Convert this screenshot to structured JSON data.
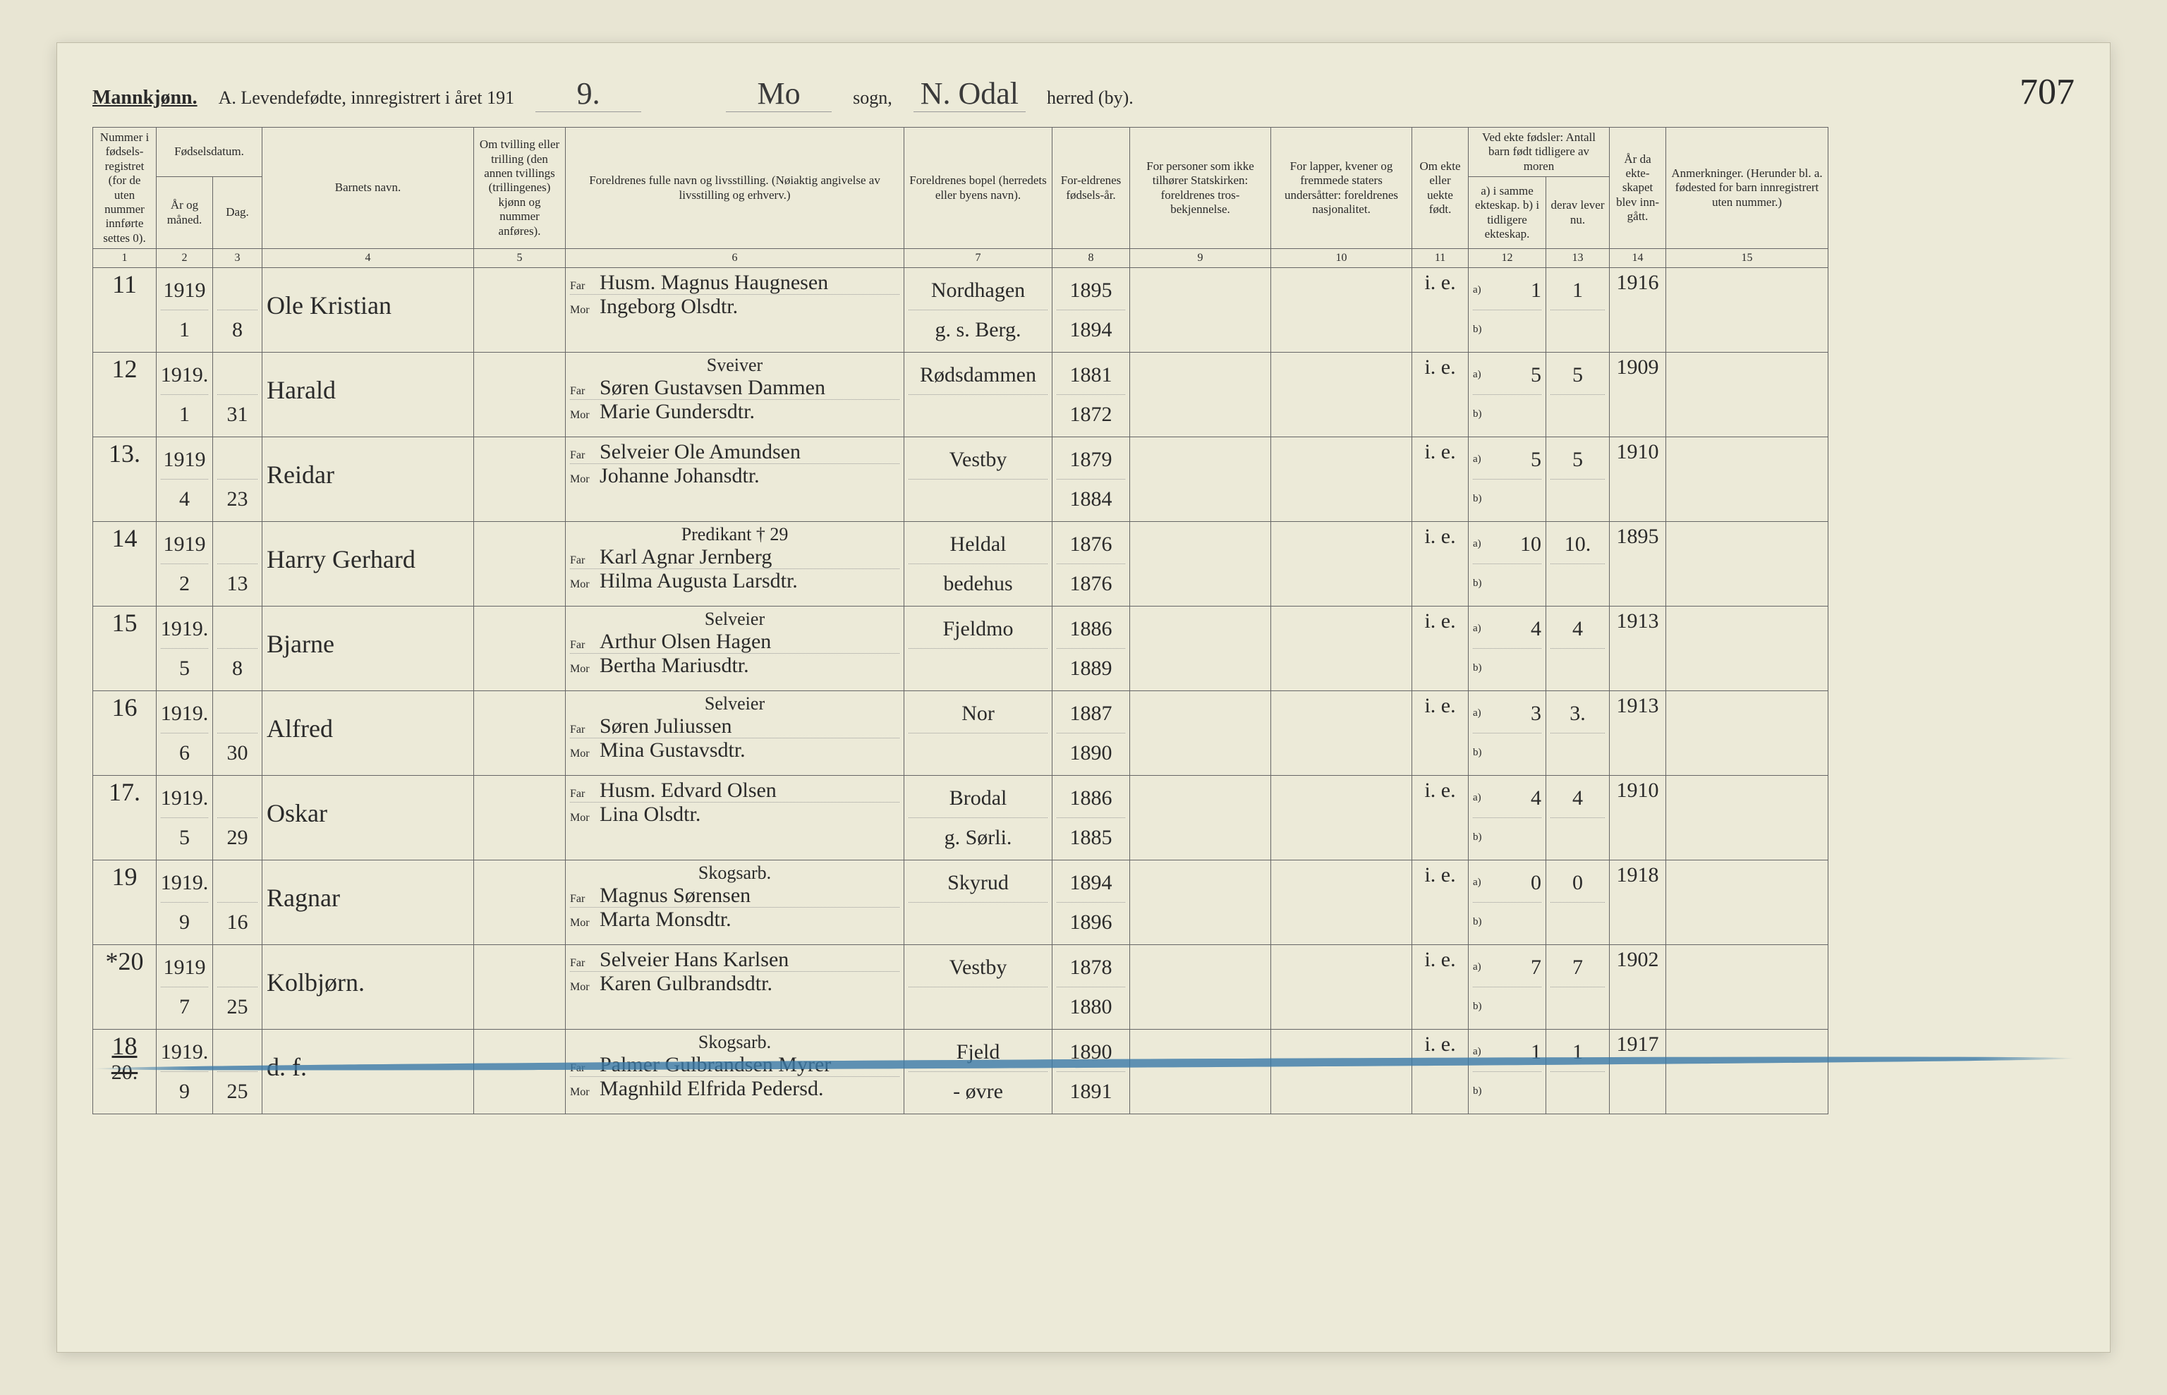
{
  "header": {
    "gender_label": "Mannkjønn.",
    "title_prefix": "A.  Levendefødte, innregistrert i året 191",
    "year_suffix": "9.",
    "sogn_value": "Mo",
    "sogn_label": "sogn,",
    "herred_value": "N. Odal",
    "herred_label": "herred (by).",
    "page_number": "707"
  },
  "columns": {
    "c1": "Nummer i fødsels-registret (for de uten nummer innførte settes 0).",
    "c2_top": "Fødselsdatum.",
    "c2": "År og måned.",
    "c3": "Dag.",
    "c4": "Barnets navn.",
    "c5": "Om tvilling eller trilling (den annen tvillings (trillingenes) kjønn og nummer anføres).",
    "c6": "Foreldrenes fulle navn og livsstilling. (Nøiaktig angivelse av livsstilling og erhverv.)",
    "c7": "Foreldrenes bopel (herredets eller byens navn).",
    "c8": "For-eldrenes fødsels-år.",
    "c9": "For personer som ikke tilhører Statskirken: foreldrenes tros-bekjennelse.",
    "c10": "For lapper, kvener og fremmede staters undersåtter: foreldrenes nasjonalitet.",
    "c11": "Om ekte eller uekte født.",
    "c12_top": "Ved ekte fødsler: Antall barn født tidligere av moren",
    "c12": "a) i samme ekteskap. b) i tidligere ekteskap.",
    "c13": "derav lever nu.",
    "c14": "År da ekte-skapet blev inn-gått.",
    "c15": "Anmerkninger. (Herunder bl. a. fødested for barn innregistrert uten nummer.)",
    "far": "Far",
    "mor": "Mor"
  },
  "colnums": [
    "1",
    "2",
    "3",
    "4",
    "5",
    "6",
    "7",
    "8",
    "9",
    "10",
    "11",
    "12",
    "13",
    "14",
    "15"
  ],
  "rows": [
    {
      "num": "11",
      "year": "1919",
      "month": "1",
      "day": "8",
      "name": "Ole Kristian",
      "far": "Husm. Magnus Haugnesen",
      "mor": "Ingeborg Olsdtr.",
      "bopel_top": "Nordhagen",
      "bopel_bot": "g. s. Berg.",
      "faar": "1895",
      "maar": "1894",
      "ekte": "i. e.",
      "a12": "1",
      "a13": "1",
      "yr": "1916"
    },
    {
      "num": "12",
      "year": "1919.",
      "month": "1",
      "day": "31",
      "name": "Harald",
      "far_pre": "Sveiver",
      "far": "Søren Gustavsen Dammen",
      "mor": "Marie Gundersdtr.",
      "bopel_top": "Rødsdammen",
      "bopel_bot": "",
      "faar": "1881",
      "maar": "1872",
      "ekte": "i. e.",
      "a12": "5",
      "a13": "5",
      "yr": "1909"
    },
    {
      "num": "13.",
      "year": "1919",
      "month": "4",
      "day": "23",
      "name": "Reidar",
      "far": "Selveier Ole Amundsen",
      "mor": "Johanne Johansdtr.",
      "bopel_top": "Vestby",
      "bopel_bot": "",
      "faar": "1879",
      "maar": "1884",
      "ekte": "i. e.",
      "a12": "5",
      "a13": "5",
      "yr": "1910"
    },
    {
      "num": "14",
      "year": "1919",
      "month": "2",
      "day": "13",
      "name": "Harry Gerhard",
      "far_pre": "Predikant † 29",
      "far": "Karl Agnar Jernberg",
      "mor": "Hilma Augusta Larsdtr.",
      "bopel_top": "Heldal",
      "bopel_bot": "bedehus",
      "faar": "1876",
      "maar": "1876",
      "ekte": "i. e.",
      "a12": "10",
      "a13": "10.",
      "yr": "1895"
    },
    {
      "num": "15",
      "year": "1919.",
      "month": "5",
      "day": "8",
      "name": "Bjarne",
      "far_pre": "Selveier",
      "far": "Arthur Olsen Hagen",
      "mor": "Bertha Mariusdtr.",
      "bopel_top": "Fjeldmo",
      "bopel_bot": "",
      "faar": "1886",
      "maar": "1889",
      "ekte": "i. e.",
      "a12": "4",
      "a13": "4",
      "yr": "1913"
    },
    {
      "num": "16",
      "year": "1919.",
      "month": "6",
      "day": "30",
      "name": "Alfred",
      "far_pre": "Selveier",
      "far": "Søren Juliussen",
      "mor": "Mina Gustavsdtr.",
      "bopel_top": "Nor",
      "bopel_bot": "",
      "faar": "1887",
      "maar": "1890",
      "ekte": "i. e.",
      "a12": "3",
      "a13": "3.",
      "yr": "1913"
    },
    {
      "num": "17.",
      "year": "1919.",
      "month": "5",
      "day": "29",
      "name": "Oskar",
      "far": "Husm. Edvard Olsen",
      "mor": "Lina Olsdtr.",
      "bopel_top": "Brodal",
      "bopel_bot": "g. Sørli.",
      "faar": "1886",
      "maar": "1885",
      "ekte": "i. e.",
      "a12": "4",
      "a13": "4",
      "yr": "1910"
    },
    {
      "num": "19",
      "year": "1919.",
      "month": "9",
      "day": "16",
      "name": "Ragnar",
      "far_pre": "Skogsarb.",
      "far": "Magnus Sørensen",
      "mor": "Marta Monsdtr.",
      "bopel_top": "Skyrud",
      "bopel_bot": "",
      "faar": "1894",
      "maar": "1896",
      "ekte": "i. e.",
      "a12": "0",
      "a13": "0",
      "yr": "1918"
    },
    {
      "num": "*20",
      "year": "1919",
      "month": "7",
      "day": "25",
      "name": "Kolbjørn.",
      "far": "Selveier Hans Karlsen",
      "mor": "Karen Gulbrandsdtr.",
      "bopel_top": "Vestby",
      "bopel_bot": "",
      "faar": "1878",
      "maar": "1880",
      "ekte": "i. e.",
      "a12": "7",
      "a13": "7",
      "yr": "1902"
    },
    {
      "num": "18",
      "num_struck": "20.",
      "year": "1919.",
      "month": "9",
      "day": "25",
      "name": "d. f.",
      "far_pre": "Skogsarb.",
      "far": "Palmer Gulbrandsen Myrer",
      "mor": "Magnhild Elfrida Pedersd.",
      "bopel_top": "Fjeld",
      "bopel_bot": "- øvre",
      "faar": "1890",
      "maar": "1891",
      "ekte": "i. e.",
      "a12": "1",
      "a13": "1",
      "yr": "1917",
      "struck": true
    }
  ],
  "style": {
    "paper_bg": "#ecead8",
    "ink": "#2a2a2a",
    "rule": "#666666",
    "blue_strike": "#3a7aa8",
    "header_fontsize": 26,
    "cursive_fontsize": 36,
    "body_fontsize": 20
  }
}
